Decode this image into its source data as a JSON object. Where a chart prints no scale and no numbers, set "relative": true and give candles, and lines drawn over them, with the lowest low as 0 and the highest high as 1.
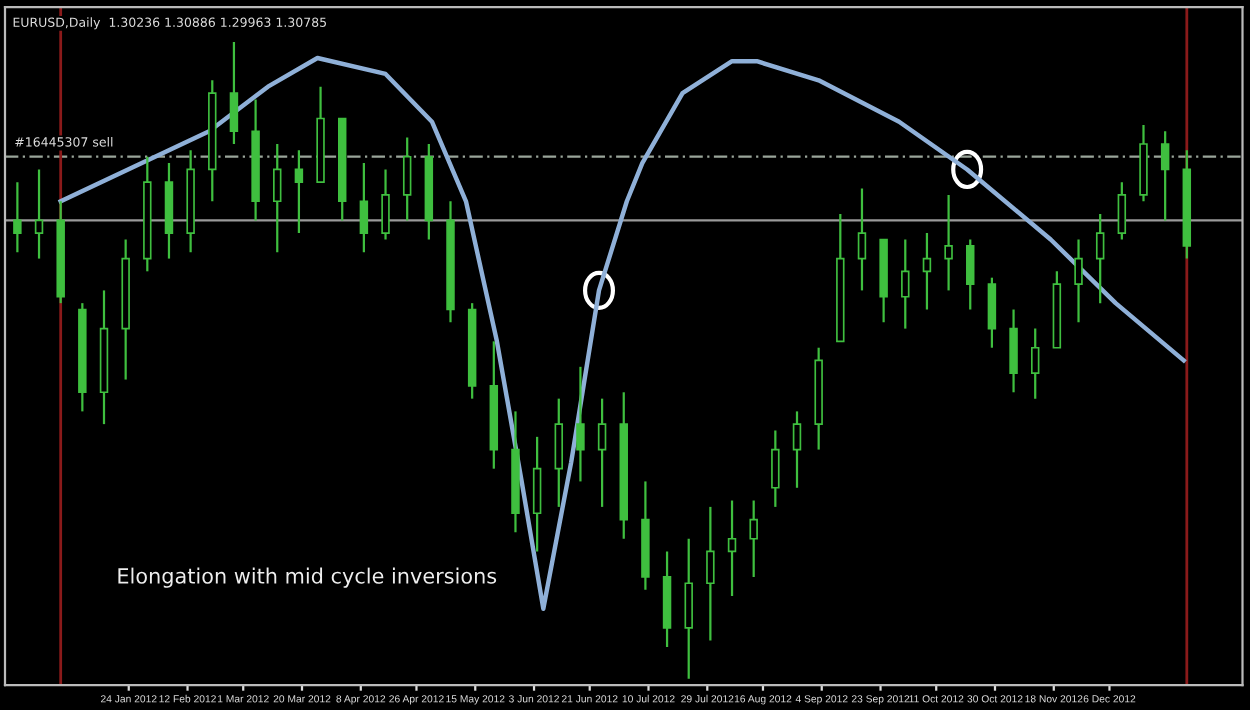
{
  "chart_data": {
    "type": "candlestick",
    "title": "EURUSD,Daily  1.30236 1.30886 1.29963 1.30785",
    "relative": true,
    "color": "#3fbf3f",
    "grid": false,
    "x": [
      "2011-12-19",
      "2011-12-26",
      "2012-01-02",
      "2012-01-09",
      "2012-01-16",
      "2012-01-23",
      "2012-01-30",
      "2012-02-06",
      "2012-02-13",
      "2012-02-20",
      "2012-02-27",
      "2012-03-05",
      "2012-03-12",
      "2012-03-19",
      "2012-03-26",
      "2012-04-02",
      "2012-04-09",
      "2012-04-16",
      "2012-04-23",
      "2012-04-30",
      "2012-05-07",
      "2012-05-14",
      "2012-05-21",
      "2012-05-28",
      "2012-06-04",
      "2012-06-11",
      "2012-06-18",
      "2012-06-25",
      "2012-07-02",
      "2012-07-09",
      "2012-07-16",
      "2012-07-23",
      "2012-07-30",
      "2012-08-06",
      "2012-08-13",
      "2012-08-20",
      "2012-08-27",
      "2012-09-03",
      "2012-09-10",
      "2012-09-17",
      "2012-09-24",
      "2012-10-01",
      "2012-10-08",
      "2012-10-15",
      "2012-10-22",
      "2012-10-29",
      "2012-11-05",
      "2012-11-12",
      "2012-11-19",
      "2012-11-26",
      "2012-12-03",
      "2012-12-10",
      "2012-12-17",
      "2012-12-24",
      "2012-12-31"
    ],
    "ohlc": [
      [
        0.72,
        0.78,
        0.67,
        0.7
      ],
      [
        0.7,
        0.8,
        0.66,
        0.72
      ],
      [
        0.72,
        0.75,
        0.59,
        0.6
      ],
      [
        0.58,
        0.59,
        0.42,
        0.45
      ],
      [
        0.45,
        0.61,
        0.4,
        0.55
      ],
      [
        0.55,
        0.69,
        0.47,
        0.66
      ],
      [
        0.66,
        0.82,
        0.64,
        0.78
      ],
      [
        0.78,
        0.81,
        0.66,
        0.7
      ],
      [
        0.7,
        0.83,
        0.67,
        0.8
      ],
      [
        0.8,
        0.94,
        0.75,
        0.92
      ],
      [
        0.92,
        1.0,
        0.84,
        0.86
      ],
      [
        0.86,
        0.91,
        0.72,
        0.75
      ],
      [
        0.75,
        0.84,
        0.67,
        0.8
      ],
      [
        0.8,
        0.83,
        0.7,
        0.78
      ],
      [
        0.78,
        0.93,
        0.78,
        0.88
      ],
      [
        0.88,
        0.88,
        0.72,
        0.75
      ],
      [
        0.75,
        0.81,
        0.67,
        0.7
      ],
      [
        0.7,
        0.8,
        0.69,
        0.76
      ],
      [
        0.76,
        0.85,
        0.72,
        0.82
      ],
      [
        0.82,
        0.84,
        0.69,
        0.72
      ],
      [
        0.72,
        0.75,
        0.56,
        0.58
      ],
      [
        0.58,
        0.59,
        0.44,
        0.46
      ],
      [
        0.46,
        0.53,
        0.33,
        0.36
      ],
      [
        0.36,
        0.42,
        0.23,
        0.26
      ],
      [
        0.26,
        0.38,
        0.2,
        0.33
      ],
      [
        0.33,
        0.44,
        0.27,
        0.4
      ],
      [
        0.4,
        0.49,
        0.31,
        0.36
      ],
      [
        0.36,
        0.44,
        0.27,
        0.4
      ],
      [
        0.4,
        0.45,
        0.22,
        0.25
      ],
      [
        0.25,
        0.31,
        0.14,
        0.16
      ],
      [
        0.16,
        0.2,
        0.05,
        0.08
      ],
      [
        0.08,
        0.22,
        0.0,
        0.15
      ],
      [
        0.15,
        0.27,
        0.06,
        0.2
      ],
      [
        0.2,
        0.28,
        0.13,
        0.22
      ],
      [
        0.22,
        0.28,
        0.16,
        0.25
      ],
      [
        0.3,
        0.39,
        0.27,
        0.36
      ],
      [
        0.36,
        0.42,
        0.3,
        0.4
      ],
      [
        0.4,
        0.52,
        0.36,
        0.5
      ],
      [
        0.53,
        0.73,
        0.53,
        0.66
      ],
      [
        0.66,
        0.77,
        0.61,
        0.7
      ],
      [
        0.69,
        0.69,
        0.56,
        0.6
      ],
      [
        0.6,
        0.69,
        0.55,
        0.64
      ],
      [
        0.64,
        0.7,
        0.58,
        0.66
      ],
      [
        0.66,
        0.76,
        0.61,
        0.68
      ],
      [
        0.68,
        0.69,
        0.58,
        0.62
      ],
      [
        0.62,
        0.63,
        0.52,
        0.55
      ],
      [
        0.55,
        0.58,
        0.45,
        0.48
      ],
      [
        0.48,
        0.55,
        0.44,
        0.52
      ],
      [
        0.52,
        0.64,
        0.52,
        0.62
      ],
      [
        0.62,
        0.69,
        0.56,
        0.66
      ],
      [
        0.66,
        0.73,
        0.59,
        0.7
      ],
      [
        0.7,
        0.78,
        0.69,
        0.76
      ],
      [
        0.76,
        0.87,
        0.75,
        0.84
      ],
      [
        0.84,
        0.86,
        0.72,
        0.8
      ],
      [
        0.8,
        0.83,
        0.66,
        0.68
      ]
    ],
    "series": [
      {
        "type": "line",
        "color": "#8fb0d8",
        "line_style": "solid",
        "marker": "none",
        "x": [
          "2012-01-02",
          "2012-02-19",
          "2012-03-09",
          "2012-03-25",
          "2012-04-16",
          "2012-05-01",
          "2012-05-12",
          "2012-05-22",
          "2012-05-30",
          "2012-06-06",
          "2012-06-15",
          "2012-06-24",
          "2012-07-03",
          "2012-07-08",
          "2012-07-21",
          "2012-08-06",
          "2012-08-14",
          "2012-09-03",
          "2012-09-29",
          "2012-10-21",
          "2012-11-17",
          "2012-12-08",
          "2012-12-30"
        ],
        "values": [
          0.75,
          0.86,
          0.93,
          0.975,
          0.95,
          0.875,
          0.75,
          0.53,
          0.31,
          0.11,
          0.34,
          0.61,
          0.75,
          0.81,
          0.92,
          0.97,
          0.97,
          0.94,
          0.875,
          0.8,
          0.69,
          0.59,
          0.5
        ]
      }
    ],
    "xlim": [
      "2011-12-15",
      "2013-01-18"
    ],
    "xticks": [
      {
        "value": "2012-01-24",
        "label": "24 Jan 2012"
      },
      {
        "value": "2012-02-12",
        "label": "12 Feb 2012"
      },
      {
        "value": "2012-03-01",
        "label": "1 Mar 2012"
      },
      {
        "value": "2012-03-20",
        "label": "20 Mar 2012"
      },
      {
        "value": "2012-04-08",
        "label": "8 Apr 2012"
      },
      {
        "value": "2012-04-26",
        "label": "26 Apr 2012"
      },
      {
        "value": "2012-05-15",
        "label": "15 May 2012"
      },
      {
        "value": "2012-06-03",
        "label": "3 Jun 2012"
      },
      {
        "value": "2012-06-21",
        "label": "21 Jun 2012"
      },
      {
        "value": "2012-07-10",
        "label": "10 Jul 2012"
      },
      {
        "value": "2012-07-29",
        "label": "29 Jul 2012"
      },
      {
        "value": "2012-08-16",
        "label": "16 Aug 2012"
      },
      {
        "value": "2012-09-04",
        "label": "4 Sep 2012"
      },
      {
        "value": "2012-09-23",
        "label": "23 Sep 2012"
      },
      {
        "value": "2012-10-11",
        "label": "11 Oct 2012"
      },
      {
        "value": "2012-10-30",
        "label": "30 Oct 2012"
      },
      {
        "value": "2012-11-18",
        "label": "18 Nov 2012"
      },
      {
        "value": "2012-12-06",
        "label": "6 Dec 2012"
      }
    ],
    "ref_lines": [
      {
        "axis": "y",
        "value": 0.82,
        "label": "#16445307 sell",
        "color": "#9aa59a",
        "line_style": "dashed"
      },
      {
        "axis": "y",
        "value": 0.72,
        "label": null,
        "color": "#9a9a9a",
        "line_style": "solid"
      },
      {
        "axis": "x",
        "value": "2012-01-02",
        "label": null,
        "color": "#8b1a1a",
        "line_style": "solid"
      },
      {
        "axis": "x",
        "value": "2012-12-31",
        "label": null,
        "color": "#8b1a1a",
        "line_style": "solid"
      }
    ],
    "annotations": [
      "Elongation with mid cycle inversions"
    ]
  }
}
